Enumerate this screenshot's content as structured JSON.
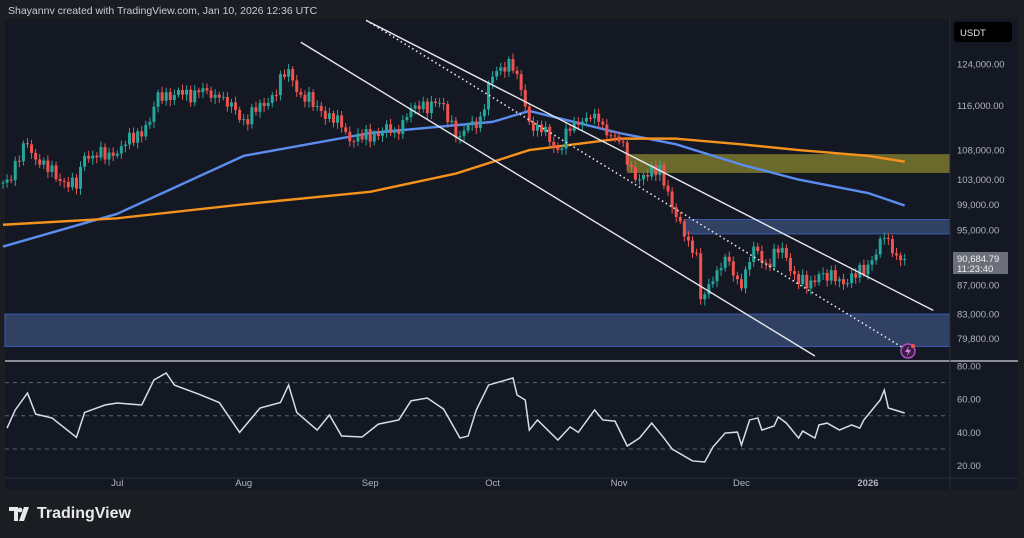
{
  "header": {
    "caption": "Shayannv created with TradingView.com, Jan 10, 2026 12:36 UTC"
  },
  "footer": {
    "logo_text": "TradingView"
  },
  "colors": {
    "up": "#26a69a",
    "down": "#ef5350",
    "ma_fast": "#5b8def",
    "ma_slow": "#f5921b",
    "supply_zone": "#8a8430",
    "blue_zone": "#3a4f7a",
    "rsi": "#d7dde8",
    "alert": "#b14dc4"
  },
  "chart_data": [
    {
      "type": "candlestick",
      "title": "",
      "currency": "USDT",
      "y_scale": "log",
      "ylim": [
        76500,
        136000
      ],
      "last_price": "90,684.79",
      "countdown": "11:23:40",
      "price_ticks": [
        "124,000.00",
        "116,000.00",
        "108,000.00",
        "103,000.00",
        "99,000.00",
        "95,000.00",
        "87,000.00",
        "83,000.00",
        "79,800.00"
      ],
      "time_ticks": [
        {
          "label": "Jul",
          "date": "2025-07-01"
        },
        {
          "label": "Aug",
          "date": "2025-08-01"
        },
        {
          "label": "Sep",
          "date": "2025-09-01"
        },
        {
          "label": "Oct",
          "date": "2025-10-01"
        },
        {
          "label": "Nov",
          "date": "2025-11-01"
        },
        {
          "label": "Dec",
          "date": "2025-12-01"
        },
        {
          "label": "2026",
          "date": "2026-01-01"
        }
      ],
      "close_path": [
        [
          "2025-06-03",
          102500
        ],
        [
          "2025-06-04",
          103000
        ],
        [
          "2025-06-09",
          109000
        ],
        [
          "2025-06-12",
          105500
        ],
        [
          "2025-06-21",
          101500
        ],
        [
          "2025-06-23",
          107000
        ],
        [
          "2025-06-30",
          107000
        ],
        [
          "2025-07-09",
          113000
        ],
        [
          "2025-07-11",
          118500
        ],
        [
          "2025-07-15",
          118000
        ],
        [
          "2025-07-21",
          118500
        ],
        [
          "2025-07-26",
          117500
        ],
        [
          "2025-08-01",
          113500
        ],
        [
          "2025-08-07",
          116500
        ],
        [
          "2025-08-12",
          123000
        ],
        [
          "2025-08-15",
          118000
        ],
        [
          "2025-08-20",
          115000
        ],
        [
          "2025-08-25",
          112000
        ],
        [
          "2025-08-28",
          109500
        ],
        [
          "2025-09-02",
          111000
        ],
        [
          "2025-09-07",
          111500
        ],
        [
          "2025-09-12",
          116000
        ],
        [
          "2025-09-18",
          116500
        ],
        [
          "2025-09-23",
          110500
        ],
        [
          "2025-09-28",
          114000
        ],
        [
          "2025-10-01",
          121500
        ],
        [
          "2025-10-05",
          125000
        ],
        [
          "2025-10-07",
          122000
        ],
        [
          "2025-10-10",
          113000
        ],
        [
          "2025-10-12",
          112500
        ],
        [
          "2025-10-17",
          108000
        ],
        [
          "2025-10-21",
          113000
        ],
        [
          "2025-10-26",
          114500
        ],
        [
          "2025-10-28",
          112500
        ],
        [
          "2025-11-01",
          109500
        ],
        [
          "2025-11-05",
          103000
        ],
        [
          "2025-11-08",
          103500
        ],
        [
          "2025-11-11",
          105500
        ],
        [
          "2025-11-14",
          98500
        ],
        [
          "2025-11-17",
          94000
        ],
        [
          "2025-11-20",
          91500
        ],
        [
          "2025-11-21",
          85000
        ],
        [
          "2025-11-24",
          87500
        ],
        [
          "2025-11-27",
          91000
        ],
        [
          "2025-12-01",
          86500
        ],
        [
          "2025-12-04",
          92500
        ],
        [
          "2025-12-07",
          90000
        ],
        [
          "2025-12-11",
          92300
        ],
        [
          "2025-12-14",
          88500
        ],
        [
          "2025-12-17",
          86500
        ],
        [
          "2025-12-20",
          88500
        ],
        [
          "2025-12-24",
          87500
        ],
        [
          "2025-12-29",
          88000
        ],
        [
          "2026-01-02",
          90500
        ],
        [
          "2026-01-05",
          93800
        ],
        [
          "2026-01-07",
          91500
        ],
        [
          "2026-01-10",
          90684.79
        ]
      ],
      "moving_averages": [
        {
          "color_key": "ma_fast",
          "points": [
            [
              "2025-06-03",
              92500
            ],
            [
              "2025-07-01",
              97500
            ],
            [
              "2025-08-01",
              107000
            ],
            [
              "2025-09-01",
              111000
            ],
            [
              "2025-10-01",
              113000
            ],
            [
              "2025-10-10",
              115000
            ],
            [
              "2025-11-01",
              111000
            ],
            [
              "2025-11-15",
              109000
            ],
            [
              "2025-12-01",
              105500
            ],
            [
              "2025-12-15",
              103000
            ],
            [
              "2026-01-01",
              100800
            ],
            [
              "2026-01-10",
              98800
            ]
          ]
        },
        {
          "color_key": "ma_slow",
          "points": [
            [
              "2025-06-03",
              95800
            ],
            [
              "2025-07-01",
              96800
            ],
            [
              "2025-08-01",
              99000
            ],
            [
              "2025-09-01",
              101000
            ],
            [
              "2025-09-22",
              104000
            ],
            [
              "2025-10-10",
              108000
            ],
            [
              "2025-11-01",
              110000
            ],
            [
              "2025-11-15",
              110000
            ],
            [
              "2025-12-01",
              109000
            ],
            [
              "2025-12-15",
              108000
            ],
            [
              "2026-01-01",
              107000
            ],
            [
              "2026-01-10",
              106000
            ]
          ]
        }
      ],
      "zones": [
        {
          "color_key": "supply_zone",
          "from": "2025-11-03",
          "top": 107300,
          "bottom": 104100
        },
        {
          "color_key": "blue_zone",
          "from": "2025-11-17",
          "top": 96600,
          "bottom": 94400
        },
        {
          "color_key": "blue_zone",
          "from": "2025-06-03",
          "top": 83000,
          "bottom": 78800
        }
      ],
      "trendlines": [
        {
          "style": "solid",
          "from": [
            "2025-08-31",
            133000
          ],
          "to": [
            "2026-01-17",
            83500
          ]
        },
        {
          "style": "solid",
          "from": [
            "2025-08-15",
            128400
          ],
          "to": [
            "2025-12-19",
            77600
          ]
        },
        {
          "style": "dotted",
          "from": [
            "2025-08-31",
            133000
          ],
          "to": [
            "2026-01-10",
            78500
          ]
        }
      ]
    },
    {
      "type": "line",
      "title": "",
      "ylim": [
        15,
        85
      ],
      "levels": [
        70,
        50,
        30
      ],
      "y_ticks": [
        "80.00",
        "60.00",
        "40.00",
        "20.00"
      ],
      "points": [
        [
          "2025-06-04",
          42.6
        ],
        [
          "2025-06-06",
          53.5
        ],
        [
          "2025-06-09",
          63.7
        ],
        [
          "2025-06-11",
          51
        ],
        [
          "2025-06-15",
          48.7
        ],
        [
          "2025-06-21",
          37
        ],
        [
          "2025-06-23",
          52
        ],
        [
          "2025-06-28",
          56.5
        ],
        [
          "2025-07-01",
          57.7
        ],
        [
          "2025-07-07",
          56.5
        ],
        [
          "2025-07-10",
          71.6
        ],
        [
          "2025-07-13",
          75.8
        ],
        [
          "2025-07-15",
          68.5
        ],
        [
          "2025-07-21",
          63
        ],
        [
          "2025-07-26",
          58
        ],
        [
          "2025-07-31",
          40
        ],
        [
          "2025-08-05",
          54.7
        ],
        [
          "2025-08-10",
          58
        ],
        [
          "2025-08-12",
          68.5
        ],
        [
          "2025-08-14",
          52
        ],
        [
          "2025-08-19",
          41.4
        ],
        [
          "2025-08-22",
          50.5
        ],
        [
          "2025-08-25",
          37.8
        ],
        [
          "2025-08-30",
          37.2
        ],
        [
          "2025-09-03",
          45
        ],
        [
          "2025-09-08",
          47.5
        ],
        [
          "2025-09-11",
          59
        ],
        [
          "2025-09-15",
          60.7
        ],
        [
          "2025-09-19",
          54
        ],
        [
          "2025-09-23",
          36.6
        ],
        [
          "2025-09-25",
          37.8
        ],
        [
          "2025-09-27",
          53.5
        ],
        [
          "2025-09-30",
          68.5
        ],
        [
          "2025-10-06",
          72.8
        ],
        [
          "2025-10-07",
          62.5
        ],
        [
          "2025-10-09",
          59.5
        ],
        [
          "2025-10-10",
          41.4
        ],
        [
          "2025-10-12",
          47.5
        ],
        [
          "2025-10-17",
          35.4
        ],
        [
          "2025-10-20",
          43.3
        ],
        [
          "2025-10-22",
          40
        ],
        [
          "2025-10-26",
          53.5
        ],
        [
          "2025-10-28",
          47.5
        ],
        [
          "2025-10-31",
          46.8
        ],
        [
          "2025-11-03",
          31.8
        ],
        [
          "2025-11-06",
          36.6
        ],
        [
          "2025-11-09",
          45.6
        ],
        [
          "2025-11-12",
          36.6
        ],
        [
          "2025-11-14",
          30
        ],
        [
          "2025-11-19",
          22.8
        ],
        [
          "2025-11-22",
          22.2
        ],
        [
          "2025-11-24",
          31.2
        ],
        [
          "2025-11-27",
          39.6
        ],
        [
          "2025-11-30",
          40.2
        ],
        [
          "2025-12-01",
          32.4
        ],
        [
          "2025-12-03",
          47.5
        ],
        [
          "2025-12-05",
          48.7
        ],
        [
          "2025-12-06",
          41.4
        ],
        [
          "2025-12-09",
          43.9
        ],
        [
          "2025-12-10",
          49.3
        ],
        [
          "2025-12-12",
          45.6
        ],
        [
          "2025-12-15",
          36.6
        ],
        [
          "2025-12-16",
          40.8
        ],
        [
          "2025-12-19",
          36.6
        ],
        [
          "2025-12-20",
          44.5
        ],
        [
          "2025-12-22",
          45.6
        ],
        [
          "2025-12-25",
          41.4
        ],
        [
          "2025-12-28",
          44.5
        ],
        [
          "2025-12-30",
          42.6
        ],
        [
          "2025-12-31",
          47.5
        ],
        [
          "2026-01-02",
          53.5
        ],
        [
          "2026-01-04",
          59.5
        ],
        [
          "2026-01-05",
          65.5
        ],
        [
          "2026-01-06",
          54.7
        ],
        [
          "2026-01-10",
          51.7
        ]
      ]
    }
  ]
}
